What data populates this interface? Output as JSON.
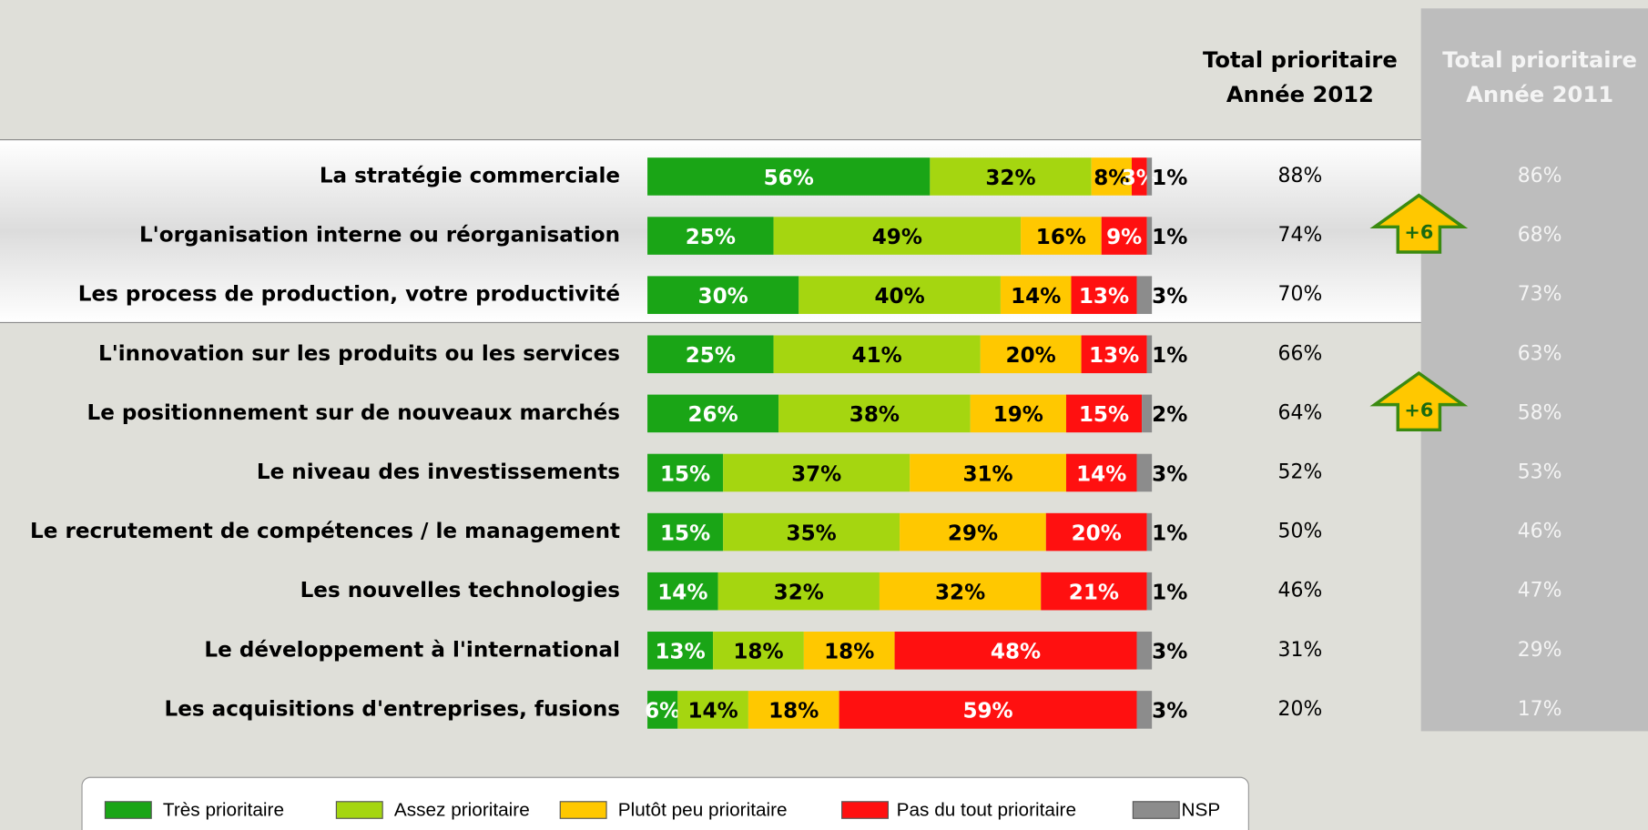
{
  "chart_data": {
    "type": "bar",
    "orientation": "horizontal",
    "stacked": true,
    "categories": [
      "La stratégie commerciale",
      "L'organisation interne ou réorganisation",
      "Les process de production, votre productivité",
      "L'innovation sur les produits ou les services",
      "Le positionnement sur de nouveaux marchés",
      "Le niveau des investissements",
      "Le recrutement de compétences / le management",
      "Les nouvelles technologies",
      "Le développement à l'international",
      "Les acquisitions d'entreprises, fusions"
    ],
    "xlim": [
      0,
      100
    ],
    "series": [
      {
        "name": "Très prioritaire",
        "color": "#1aa516",
        "values": [
          56,
          25,
          30,
          25,
          26,
          15,
          15,
          14,
          13,
          6
        ],
        "value_labels": [
          "56%",
          "25%",
          "30%",
          "25%",
          "26%",
          "15%",
          "15%",
          "14%",
          "13%",
          "6%"
        ]
      },
      {
        "name": "Assez prioritaire",
        "color": "#a5d610",
        "values": [
          32,
          49,
          40,
          41,
          38,
          37,
          35,
          32,
          18,
          14
        ],
        "value_labels": [
          "32%",
          "49%",
          "40%",
          "41%",
          "38%",
          "37%",
          "35%",
          "32%",
          "18%",
          "14%"
        ]
      },
      {
        "name": "Plutôt peu prioritaire",
        "color": "#ffc800",
        "values": [
          8,
          16,
          14,
          20,
          19,
          31,
          29,
          32,
          18,
          18
        ],
        "value_labels": [
          "8%",
          "16%",
          "14%",
          "20%",
          "19%",
          "31%",
          "29%",
          "32%",
          "18%",
          "18%"
        ]
      },
      {
        "name": "Pas du tout prioritaire",
        "color": "#ff1010",
        "values": [
          3,
          9,
          13,
          13,
          15,
          14,
          20,
          21,
          48,
          59
        ],
        "value_labels": [
          "3%",
          "9%",
          "13%",
          "13%",
          "15%",
          "14%",
          "20%",
          "21%",
          "48%",
          "59%"
        ]
      },
      {
        "name": "NSP",
        "color": "#8c8c8c",
        "values": [
          1,
          1,
          3,
          1,
          2,
          3,
          1,
          1,
          3,
          3
        ],
        "value_labels": [
          "1%",
          "1%",
          "3%",
          "1%",
          "2%",
          "3%",
          "1%",
          "1%",
          "3%",
          "3%"
        ]
      }
    ],
    "total_2012": {
      "title": [
        "Total prioritaire",
        "Année 2012"
      ],
      "values": [
        88,
        74,
        70,
        66,
        64,
        52,
        50,
        46,
        31,
        20
      ],
      "value_labels": [
        "88%",
        "74%",
        "70%",
        "66%",
        "64%",
        "52%",
        "50%",
        "46%",
        "31%",
        "20%"
      ]
    },
    "total_2011": {
      "title": [
        "Total prioritaire",
        "Année 2011"
      ],
      "values": [
        86,
        68,
        73,
        63,
        58,
        53,
        46,
        47,
        29,
        17
      ],
      "value_labels": [
        "86%",
        "68%",
        "73%",
        "63%",
        "58%",
        "53%",
        "46%",
        "47%",
        "29%",
        "17%"
      ]
    },
    "annotations": [
      "+6",
      "+6"
    ]
  }
}
